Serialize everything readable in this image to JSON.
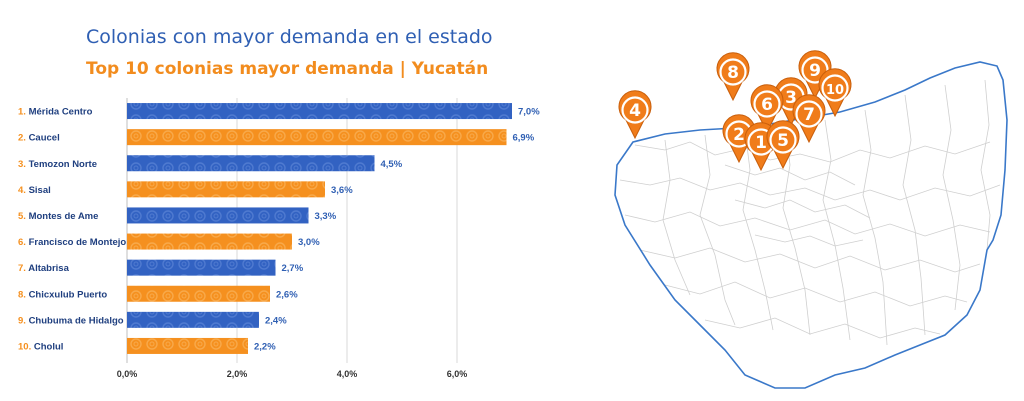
{
  "title": "Colonias con mayor demanda en el estado",
  "subtitle": "Top 10 colonias mayor demanda | Yucatán",
  "colors": {
    "blue": "#3262c2",
    "orange": "#f5901f",
    "title_blue": "#2f5fb3",
    "title_orange": "#f28c1e",
    "map_outline": "#3a78c9",
    "map_lines": "#c8c8c8"
  },
  "chart_data": {
    "type": "bar",
    "orientation": "horizontal",
    "categories": [
      "1. Mérida Centro",
      "2. Caucel",
      "3. Temozon Norte",
      "4. Sisal",
      "5. Montes de Ame",
      "6. Francisco de Montejo",
      "7. Altabrisa",
      "8. Chicxulub Puerto",
      "9. Chubuma de Hidalgo",
      "10. Cholul"
    ],
    "values": [
      7.0,
      6.9,
      4.5,
      3.6,
      3.3,
      3.0,
      2.7,
      2.6,
      2.4,
      2.2
    ],
    "value_labels": [
      "7,0%",
      "6,9%",
      "4,5%",
      "3,6%",
      "3,3%",
      "3,0%",
      "2,7%",
      "2,6%",
      "2,4%",
      "2,2%"
    ],
    "x_ticks": [
      0,
      2,
      4,
      6
    ],
    "x_tick_labels": [
      "0,0%",
      "2,0%",
      "4,0%",
      "6,0%"
    ],
    "xlim": [
      0,
      7.6
    ],
    "grid": true,
    "bar_colors": [
      "blue",
      "orange",
      "blue",
      "orange",
      "blue",
      "orange",
      "blue",
      "orange",
      "blue",
      "orange"
    ]
  },
  "map": {
    "region": "Yucatán",
    "pin_labels": [
      "1",
      "2",
      "3",
      "4",
      "5",
      "6",
      "7",
      "8",
      "9",
      "10"
    ]
  }
}
